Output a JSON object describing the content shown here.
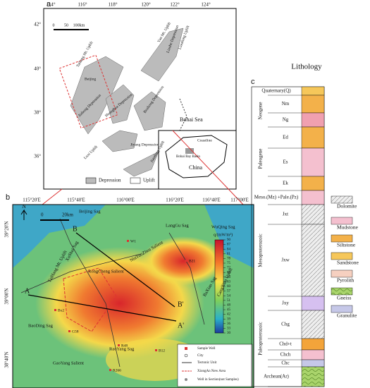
{
  "panel_a": {
    "label": "a",
    "lon_ticks": [
      "114°",
      "116°",
      "118°",
      "120°",
      "122°",
      "124°"
    ],
    "lat_ticks": [
      "42°",
      "40°",
      "38°",
      "36°"
    ],
    "scale": [
      "0",
      "50",
      "100km"
    ],
    "regions": [
      "Yan Mt. Uplift",
      "Taihang Mt. Uplift",
      "Beijing",
      "Jizhong Depression",
      "Huanghua Depression",
      "Bozhong Depression",
      "Liaohe Depression",
      "Liaodong Uplift",
      "Bohai Sea",
      "Coastline",
      "Jiyang Depression",
      "Luxi Uplift",
      "Jiaodong Uplift"
    ],
    "inset": [
      "Bohai Bay Basin",
      "China"
    ],
    "legend": [
      "Depression",
      "Uplift"
    ]
  },
  "panel_b": {
    "label": "b",
    "lon_ticks": [
      "115°20'E",
      "115°40'E",
      "116°00'E",
      "116°20'E",
      "116°40'E",
      "117°00'E"
    ],
    "lat_ticks": [
      "39°20'N",
      "39°00'N",
      "38°40'N"
    ],
    "north": "N",
    "scale": [
      "0",
      "20km"
    ],
    "places": [
      "Beijing Sag",
      "LangGu Sag",
      "WuQing Sag",
      "TaiHang Mt. Uplift",
      "XuShui Sag",
      "RongCheng Salient",
      "NiuTuoZhen Salient",
      "BaXian Sag",
      "CangXian Uplift",
      "BaoDing Sag",
      "GaoYang Salient",
      "RaoYang Sag"
    ],
    "wells": [
      "W1",
      "B21",
      "Bx2",
      "G58",
      "R48",
      "B12",
      "R266"
    ],
    "section": [
      "A",
      "A'",
      "B",
      "B'"
    ],
    "colorbar": {
      "title": "q/(mW/m²)",
      "ticks": [
        90,
        87,
        84,
        81,
        78,
        75,
        72,
        69,
        66,
        63,
        60,
        57,
        54,
        51,
        48,
        45,
        42,
        39,
        36,
        33,
        30
      ]
    },
    "legend": [
      "Sample Well",
      "City",
      "Tectonic Unit",
      "XiongAn New Area",
      "Well in Section(not Samples)"
    ]
  },
  "panel_c": {
    "label": "c",
    "title": "Lithology",
    "systems": [
      "Neogene",
      "Paleogene",
      "Mesoproterozoic",
      "Paleoproterozoic"
    ],
    "units": [
      "Quaternary(Q)",
      "Nm",
      "Ng",
      "Ed",
      "Es",
      "Ek",
      "Meso.(Mz) +Pale.(Pz)",
      "Jxt",
      "Jxw",
      "Jxy",
      "Chg",
      "Chd+t",
      "Chch",
      "Chc",
      "Archean(Ar)"
    ],
    "legend": [
      "Dolomite",
      "Mudstone",
      "Siltstone",
      "Sandstone",
      "Pyrolith",
      "Gneiss",
      "Granulite"
    ]
  }
}
